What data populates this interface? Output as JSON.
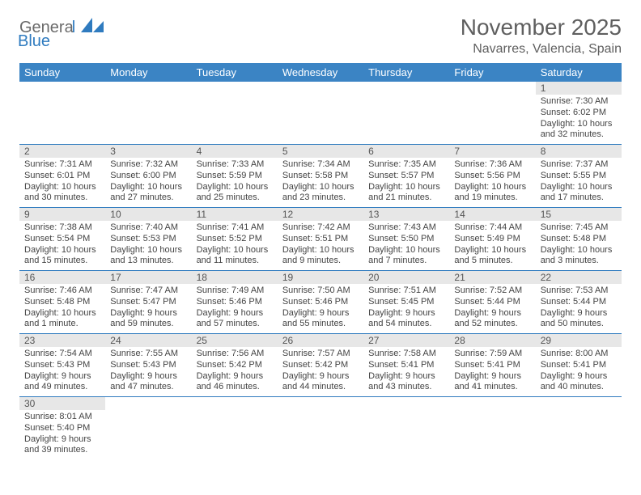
{
  "logo": {
    "text1": "Genera",
    "text2": "Blue"
  },
  "title": "November 2025",
  "location": "Navarres, Valencia, Spain",
  "header_bg": "#3b84c4",
  "border_color": "#2f7bbf",
  "daynum_bg": "#e7e7e7",
  "days": [
    "Sunday",
    "Monday",
    "Tuesday",
    "Wednesday",
    "Thursday",
    "Friday",
    "Saturday"
  ],
  "weeks": [
    [
      null,
      null,
      null,
      null,
      null,
      null,
      {
        "n": "1",
        "sr": "Sunrise: 7:30 AM",
        "ss": "Sunset: 6:02 PM",
        "dl": "Daylight: 10 hours and 32 minutes."
      }
    ],
    [
      {
        "n": "2",
        "sr": "Sunrise: 7:31 AM",
        "ss": "Sunset: 6:01 PM",
        "dl": "Daylight: 10 hours and 30 minutes."
      },
      {
        "n": "3",
        "sr": "Sunrise: 7:32 AM",
        "ss": "Sunset: 6:00 PM",
        "dl": "Daylight: 10 hours and 27 minutes."
      },
      {
        "n": "4",
        "sr": "Sunrise: 7:33 AM",
        "ss": "Sunset: 5:59 PM",
        "dl": "Daylight: 10 hours and 25 minutes."
      },
      {
        "n": "5",
        "sr": "Sunrise: 7:34 AM",
        "ss": "Sunset: 5:58 PM",
        "dl": "Daylight: 10 hours and 23 minutes."
      },
      {
        "n": "6",
        "sr": "Sunrise: 7:35 AM",
        "ss": "Sunset: 5:57 PM",
        "dl": "Daylight: 10 hours and 21 minutes."
      },
      {
        "n": "7",
        "sr": "Sunrise: 7:36 AM",
        "ss": "Sunset: 5:56 PM",
        "dl": "Daylight: 10 hours and 19 minutes."
      },
      {
        "n": "8",
        "sr": "Sunrise: 7:37 AM",
        "ss": "Sunset: 5:55 PM",
        "dl": "Daylight: 10 hours and 17 minutes."
      }
    ],
    [
      {
        "n": "9",
        "sr": "Sunrise: 7:38 AM",
        "ss": "Sunset: 5:54 PM",
        "dl": "Daylight: 10 hours and 15 minutes."
      },
      {
        "n": "10",
        "sr": "Sunrise: 7:40 AM",
        "ss": "Sunset: 5:53 PM",
        "dl": "Daylight: 10 hours and 13 minutes."
      },
      {
        "n": "11",
        "sr": "Sunrise: 7:41 AM",
        "ss": "Sunset: 5:52 PM",
        "dl": "Daylight: 10 hours and 11 minutes."
      },
      {
        "n": "12",
        "sr": "Sunrise: 7:42 AM",
        "ss": "Sunset: 5:51 PM",
        "dl": "Daylight: 10 hours and 9 minutes."
      },
      {
        "n": "13",
        "sr": "Sunrise: 7:43 AM",
        "ss": "Sunset: 5:50 PM",
        "dl": "Daylight: 10 hours and 7 minutes."
      },
      {
        "n": "14",
        "sr": "Sunrise: 7:44 AM",
        "ss": "Sunset: 5:49 PM",
        "dl": "Daylight: 10 hours and 5 minutes."
      },
      {
        "n": "15",
        "sr": "Sunrise: 7:45 AM",
        "ss": "Sunset: 5:48 PM",
        "dl": "Daylight: 10 hours and 3 minutes."
      }
    ],
    [
      {
        "n": "16",
        "sr": "Sunrise: 7:46 AM",
        "ss": "Sunset: 5:48 PM",
        "dl": "Daylight: 10 hours and 1 minute."
      },
      {
        "n": "17",
        "sr": "Sunrise: 7:47 AM",
        "ss": "Sunset: 5:47 PM",
        "dl": "Daylight: 9 hours and 59 minutes."
      },
      {
        "n": "18",
        "sr": "Sunrise: 7:49 AM",
        "ss": "Sunset: 5:46 PM",
        "dl": "Daylight: 9 hours and 57 minutes."
      },
      {
        "n": "19",
        "sr": "Sunrise: 7:50 AM",
        "ss": "Sunset: 5:46 PM",
        "dl": "Daylight: 9 hours and 55 minutes."
      },
      {
        "n": "20",
        "sr": "Sunrise: 7:51 AM",
        "ss": "Sunset: 5:45 PM",
        "dl": "Daylight: 9 hours and 54 minutes."
      },
      {
        "n": "21",
        "sr": "Sunrise: 7:52 AM",
        "ss": "Sunset: 5:44 PM",
        "dl": "Daylight: 9 hours and 52 minutes."
      },
      {
        "n": "22",
        "sr": "Sunrise: 7:53 AM",
        "ss": "Sunset: 5:44 PM",
        "dl": "Daylight: 9 hours and 50 minutes."
      }
    ],
    [
      {
        "n": "23",
        "sr": "Sunrise: 7:54 AM",
        "ss": "Sunset: 5:43 PM",
        "dl": "Daylight: 9 hours and 49 minutes."
      },
      {
        "n": "24",
        "sr": "Sunrise: 7:55 AM",
        "ss": "Sunset: 5:43 PM",
        "dl": "Daylight: 9 hours and 47 minutes."
      },
      {
        "n": "25",
        "sr": "Sunrise: 7:56 AM",
        "ss": "Sunset: 5:42 PM",
        "dl": "Daylight: 9 hours and 46 minutes."
      },
      {
        "n": "26",
        "sr": "Sunrise: 7:57 AM",
        "ss": "Sunset: 5:42 PM",
        "dl": "Daylight: 9 hours and 44 minutes."
      },
      {
        "n": "27",
        "sr": "Sunrise: 7:58 AM",
        "ss": "Sunset: 5:41 PM",
        "dl": "Daylight: 9 hours and 43 minutes."
      },
      {
        "n": "28",
        "sr": "Sunrise: 7:59 AM",
        "ss": "Sunset: 5:41 PM",
        "dl": "Daylight: 9 hours and 41 minutes."
      },
      {
        "n": "29",
        "sr": "Sunrise: 8:00 AM",
        "ss": "Sunset: 5:41 PM",
        "dl": "Daylight: 9 hours and 40 minutes."
      }
    ],
    [
      {
        "n": "30",
        "sr": "Sunrise: 8:01 AM",
        "ss": "Sunset: 5:40 PM",
        "dl": "Daylight: 9 hours and 39 minutes."
      },
      null,
      null,
      null,
      null,
      null,
      null
    ]
  ]
}
